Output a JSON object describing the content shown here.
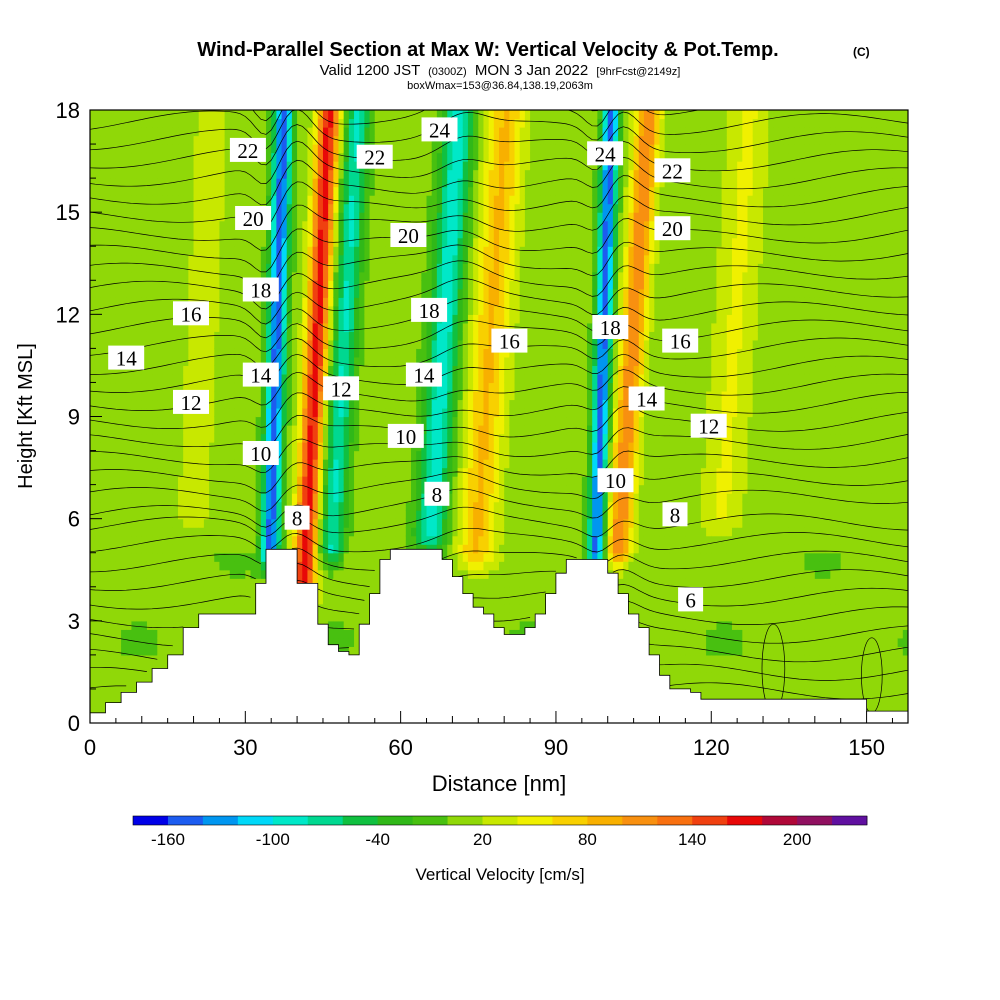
{
  "chart_data": {
    "type": "heatmap",
    "title": "Wind-Parallel Section at Max W: Vertical Velocity & Pot.Temp.",
    "title_mark": "(C)",
    "subtitle": {
      "prefix": "Valid 1200 JST",
      "utc": "(0300Z)",
      "date": "MON 3 Jan 2022",
      "forecast": "[9hrFcst@2149z]"
    },
    "subtitle2": "boxWmax=153@36.84,138.19,2063m",
    "xlabel": "Distance [nm]",
    "ylabel": "Height [Kft MSL]",
    "xlim": [
      0,
      158
    ],
    "ylim": [
      0,
      18
    ],
    "xticks": [
      0,
      30,
      60,
      90,
      120,
      150
    ],
    "yticks": [
      0,
      3,
      6,
      9,
      12,
      15,
      18
    ],
    "colorbar": {
      "label": "Vertical Velocity [cm/s]",
      "tick_labels": [
        "-160",
        "-100",
        "-40",
        "20",
        "80",
        "140",
        "200"
      ],
      "tick_values": [
        -160,
        -100,
        -40,
        20,
        80,
        140,
        200
      ],
      "levels": [
        -180,
        -160,
        -140,
        -120,
        -100,
        -80,
        -60,
        -40,
        -20,
        0,
        20,
        40,
        60,
        80,
        100,
        120,
        140,
        160,
        180,
        200,
        220,
        240
      ],
      "colors": [
        "#0000e8",
        "#1c5cf0",
        "#0096f0",
        "#00d8f8",
        "#00e8c8",
        "#00d890",
        "#10c040",
        "#30b818",
        "#48c010",
        "#90d808",
        "#c8e800",
        "#f0f000",
        "#f8d000",
        "#f8b000",
        "#f89010",
        "#f87010",
        "#f04010",
        "#e80808",
        "#b00838",
        "#901060",
        "#6010a0"
      ]
    },
    "terrain": [
      [
        0,
        0.3
      ],
      [
        3,
        0.6
      ],
      [
        6,
        0.9
      ],
      [
        9,
        1.2
      ],
      [
        12,
        1.6
      ],
      [
        15,
        2.0
      ],
      [
        18,
        2.8
      ],
      [
        21,
        3.2
      ],
      [
        24,
        3.2
      ],
      [
        27,
        3.2
      ],
      [
        30,
        3.2
      ],
      [
        32,
        4.1
      ],
      [
        34,
        5.1
      ],
      [
        36,
        5.1
      ],
      [
        38,
        5.1
      ],
      [
        40,
        4.1
      ],
      [
        42,
        4.1
      ],
      [
        44,
        2.9
      ],
      [
        46,
        2.3
      ],
      [
        48,
        2.1
      ],
      [
        50,
        2.0
      ],
      [
        52,
        2.9
      ],
      [
        54,
        3.8
      ],
      [
        56,
        4.8
      ],
      [
        58,
        5.1
      ],
      [
        60,
        5.1
      ],
      [
        62,
        5.1
      ],
      [
        64,
        5.1
      ],
      [
        66,
        5.1
      ],
      [
        68,
        4.8
      ],
      [
        70,
        4.3
      ],
      [
        72,
        3.8
      ],
      [
        74,
        3.4
      ],
      [
        76,
        3.2
      ],
      [
        78,
        2.8
      ],
      [
        80,
        2.6
      ],
      [
        82,
        2.6
      ],
      [
        84,
        2.8
      ],
      [
        86,
        3.2
      ],
      [
        88,
        3.8
      ],
      [
        90,
        4.4
      ],
      [
        92,
        4.8
      ],
      [
        94,
        4.8
      ],
      [
        96,
        4.8
      ],
      [
        98,
        4.8
      ],
      [
        100,
        4.4
      ],
      [
        102,
        3.8
      ],
      [
        104,
        3.2
      ],
      [
        106,
        2.8
      ],
      [
        108,
        2.0
      ],
      [
        110,
        1.4
      ],
      [
        112,
        1.0
      ],
      [
        114,
        1.0
      ],
      [
        116,
        0.9
      ],
      [
        118,
        0.7
      ],
      [
        120,
        0.7
      ],
      [
        124,
        0.7
      ],
      [
        130,
        0.7
      ],
      [
        136,
        0.7
      ],
      [
        142,
        0.7
      ],
      [
        146,
        0.7
      ],
      [
        148,
        0.7
      ],
      [
        150,
        0.35
      ],
      [
        152,
        0.35
      ],
      [
        158,
        0.35
      ]
    ],
    "vertical_velocity_features": [
      {
        "x_center": 35.0,
        "tilt": 0.2,
        "width": 1.8,
        "amplitude": -160,
        "y_from": 5.0,
        "y_to": 18
      },
      {
        "x_center": 42.0,
        "tilt": 0.35,
        "width": 2.2,
        "amplitude": 160,
        "y_from": 3.6,
        "y_to": 18
      },
      {
        "x_center": 47.0,
        "tilt": 0.4,
        "width": 2.4,
        "amplitude": -90,
        "y_from": 5.0,
        "y_to": 18
      },
      {
        "x_center": 66.0,
        "tilt": 0.45,
        "width": 3.0,
        "amplitude": -100,
        "y_from": 5.5,
        "y_to": 18
      },
      {
        "x_center": 75.0,
        "tilt": 0.45,
        "width": 3.6,
        "amplitude": 75,
        "y_from": 5.0,
        "y_to": 18
      },
      {
        "x_center": 98.0,
        "tilt": 0.22,
        "width": 1.6,
        "amplitude": -160,
        "y_from": 5.0,
        "y_to": 18
      },
      {
        "x_center": 102.5,
        "tilt": 0.45,
        "width": 2.4,
        "amplitude": 110,
        "y_from": 5.0,
        "y_to": 18
      },
      {
        "x_center": 122.0,
        "tilt": 0.45,
        "width": 4.0,
        "amplitude": 35,
        "y_from": 6.0,
        "y_to": 18
      },
      {
        "x_center": 20.0,
        "tilt": 0.3,
        "width": 4.0,
        "amplitude": 20,
        "y_from": 6.0,
        "y_to": 18
      }
    ],
    "theta_contour_labels": [
      {
        "text": "22",
        "x": 30.5,
        "y": 16.8
      },
      {
        "text": "24",
        "x": 67.5,
        "y": 17.4
      },
      {
        "text": "22",
        "x": 55.0,
        "y": 16.6
      },
      {
        "text": "24",
        "x": 99.5,
        "y": 16.7
      },
      {
        "text": "22",
        "x": 112.5,
        "y": 16.2
      },
      {
        "text": "20",
        "x": 31.5,
        "y": 14.8
      },
      {
        "text": "20",
        "x": 61.5,
        "y": 14.3
      },
      {
        "text": "20",
        "x": 112.5,
        "y": 14.5
      },
      {
        "text": "18",
        "x": 33.0,
        "y": 12.7
      },
      {
        "text": "18",
        "x": 65.5,
        "y": 12.1
      },
      {
        "text": "18",
        "x": 100.5,
        "y": 11.6
      },
      {
        "text": "16",
        "x": 19.5,
        "y": 12.0
      },
      {
        "text": "16",
        "x": 81.0,
        "y": 11.2
      },
      {
        "text": "16",
        "x": 114.0,
        "y": 11.2
      },
      {
        "text": "14",
        "x": 7.0,
        "y": 10.7
      },
      {
        "text": "14",
        "x": 33.0,
        "y": 10.2
      },
      {
        "text": "14",
        "x": 64.5,
        "y": 10.2
      },
      {
        "text": "14",
        "x": 107.5,
        "y": 9.5
      },
      {
        "text": "12",
        "x": 19.5,
        "y": 9.4
      },
      {
        "text": "12",
        "x": 48.5,
        "y": 9.8
      },
      {
        "text": "12",
        "x": 119.5,
        "y": 8.7
      },
      {
        "text": "10",
        "x": 33.0,
        "y": 7.9
      },
      {
        "text": "10",
        "x": 61.0,
        "y": 8.4
      },
      {
        "text": "10",
        "x": 101.5,
        "y": 7.1
      },
      {
        "text": "8",
        "x": 40.0,
        "y": 6.0
      },
      {
        "text": "8",
        "x": 67.0,
        "y": 6.7
      },
      {
        "text": "8",
        "x": 113.0,
        "y": 6.1
      },
      {
        "text": "6",
        "x": 116.0,
        "y": 3.6
      }
    ]
  }
}
